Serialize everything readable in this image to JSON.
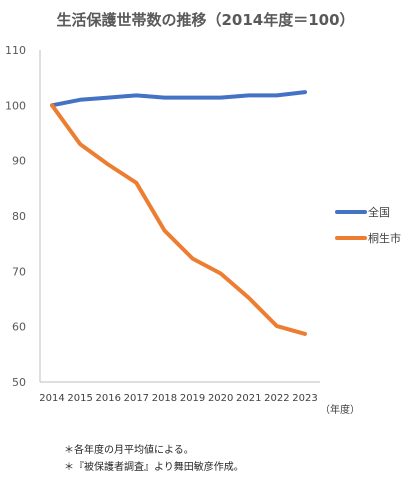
{
  "chart_data": {
    "type": "line",
    "title": "生活保護世帯数の推移（2014年度＝100）",
    "x_unit_label": "（年度）",
    "categories": [
      "2014",
      "2015",
      "2016",
      "2017",
      "2018",
      "2019",
      "2020",
      "2021",
      "2022",
      "2023"
    ],
    "y_ticks": [
      "110",
      "100",
      "90",
      "80",
      "70",
      "60",
      "50"
    ],
    "ylim": [
      50,
      110
    ],
    "grid": false,
    "legend_position": "right",
    "series": [
      {
        "name": "全国",
        "color": "#4472C4",
        "values": [
          100,
          101,
          101.4,
          101.8,
          101.4,
          101.4,
          101.4,
          101.8,
          101.8,
          102.4
        ]
      },
      {
        "name": "桐生市",
        "color": "#ED7D31",
        "values": [
          100,
          93,
          89.3,
          86,
          77.4,
          72.3,
          69.6,
          65.2,
          60.1,
          58.7
        ]
      }
    ],
    "notes": [
      "＊各年度の月平均値による。",
      "＊『被保護者調査』より舞田敏彦作成。"
    ]
  }
}
